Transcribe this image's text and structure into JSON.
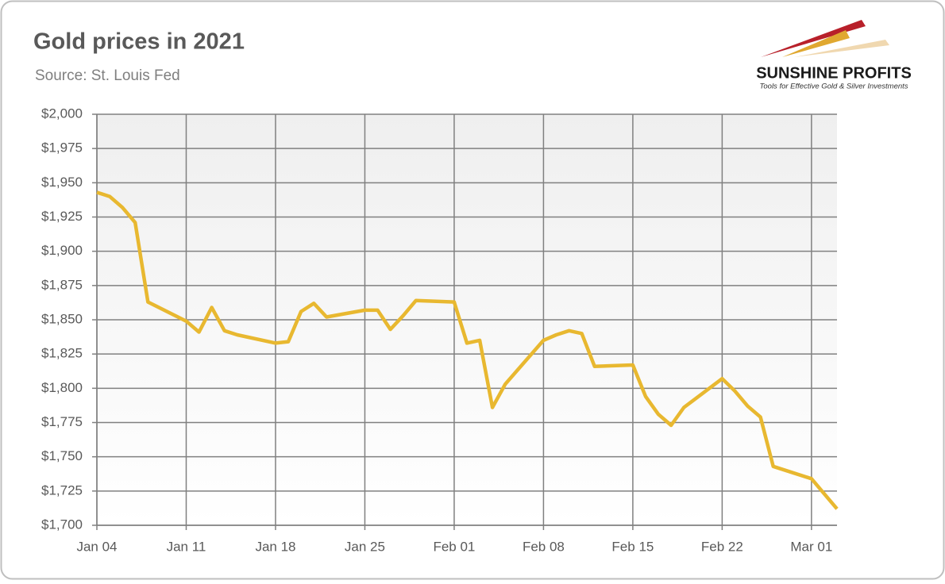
{
  "logo": {
    "name": "SUNSHINE PROFITS",
    "tagline": "Tools for Effective Gold & Silver Investments"
  },
  "chart_data": {
    "type": "line",
    "title": "Gold prices in 2021",
    "subtitle": "Source: St. Louis Fed",
    "x": [
      "Jan 04",
      "Jan 05",
      "Jan 06",
      "Jan 07",
      "Jan 08",
      "Jan 11",
      "Jan 12",
      "Jan 13",
      "Jan 14",
      "Jan 15",
      "Jan 18",
      "Jan 19",
      "Jan 20",
      "Jan 21",
      "Jan 22",
      "Jan 25",
      "Jan 26",
      "Jan 27",
      "Jan 28",
      "Jan 29",
      "Feb 01",
      "Feb 02",
      "Feb 03",
      "Feb 04",
      "Feb 05",
      "Feb 08",
      "Feb 09",
      "Feb 10",
      "Feb 11",
      "Feb 12",
      "Feb 15",
      "Feb 16",
      "Feb 17",
      "Feb 18",
      "Feb 19",
      "Feb 22",
      "Feb 23",
      "Feb 24",
      "Feb 25",
      "Feb 26",
      "Mar 01",
      "Mar 02",
      "Mar 03"
    ],
    "values": [
      1943,
      1940,
      1932,
      1921,
      1863,
      1849,
      1841,
      1859,
      1842,
      1839,
      1833,
      1834,
      1856,
      1862,
      1852,
      1857,
      1857,
      1843,
      1853,
      1864,
      1863,
      1833,
      1835,
      1786,
      1803,
      1835,
      1839,
      1842,
      1840,
      1816,
      1817,
      1794,
      1781,
      1773,
      1786,
      1807,
      1798,
      1787,
      1779,
      1743,
      1734,
      1723,
      1712
    ],
    "color": "#e8b830",
    "xlim": [
      "Jan 04",
      "Mar 03"
    ],
    "xticks": [
      "Jan 04",
      "Jan 11",
      "Jan 18",
      "Jan 25",
      "Feb 01",
      "Feb 08",
      "Feb 15",
      "Feb 22",
      "Mar 01"
    ],
    "ylim": [
      1700,
      2000
    ],
    "yticks": [
      {
        "value": 1700,
        "label": "$1,700"
      },
      {
        "value": 1725,
        "label": "$1,725"
      },
      {
        "value": 1750,
        "label": "$1,750"
      },
      {
        "value": 1775,
        "label": "$1,775"
      },
      {
        "value": 1800,
        "label": "$1,800"
      },
      {
        "value": 1825,
        "label": "$1,825"
      },
      {
        "value": 1850,
        "label": "$1,850"
      },
      {
        "value": 1875,
        "label": "$1,875"
      },
      {
        "value": 1900,
        "label": "$1,900"
      },
      {
        "value": 1925,
        "label": "$1,925"
      },
      {
        "value": 1950,
        "label": "$1,950"
      },
      {
        "value": 1975,
        "label": "$1,975"
      },
      {
        "value": 2000,
        "label": "$2,000"
      }
    ],
    "grid": true
  }
}
